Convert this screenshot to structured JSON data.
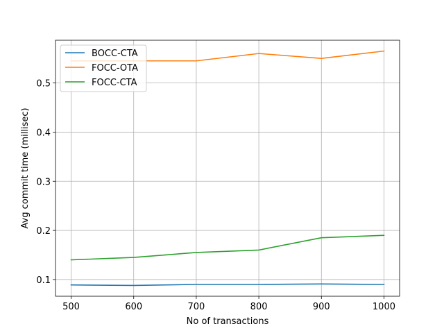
{
  "chart_data": {
    "type": "line",
    "title": "",
    "xlabel": "No of transactions",
    "ylabel": "Avg commit time (millisec)",
    "x": [
      500,
      600,
      700,
      800,
      900,
      1000
    ],
    "xlim": [
      475,
      1025
    ],
    "ylim": [
      0.066,
      0.587
    ],
    "xticks": [
      500,
      600,
      700,
      800,
      900,
      1000
    ],
    "yticks": [
      0.1,
      0.2,
      0.3,
      0.4,
      0.5
    ],
    "ytick_labels": [
      "0.1",
      "0.2",
      "0.3",
      "0.4",
      "0.5"
    ],
    "grid": true,
    "legend_position": "top-left",
    "series": [
      {
        "name": "BOCC-CTA",
        "color": "#1f77b4",
        "values": [
          0.089,
          0.088,
          0.09,
          0.09,
          0.091,
          0.09
        ]
      },
      {
        "name": "FOCC-OTA",
        "color": "#ff7f0e",
        "values": [
          0.545,
          0.545,
          0.545,
          0.56,
          0.55,
          0.565
        ]
      },
      {
        "name": "FOCC-CTA",
        "color": "#2ca02c",
        "values": [
          0.14,
          0.145,
          0.155,
          0.16,
          0.185,
          0.19
        ]
      }
    ]
  }
}
